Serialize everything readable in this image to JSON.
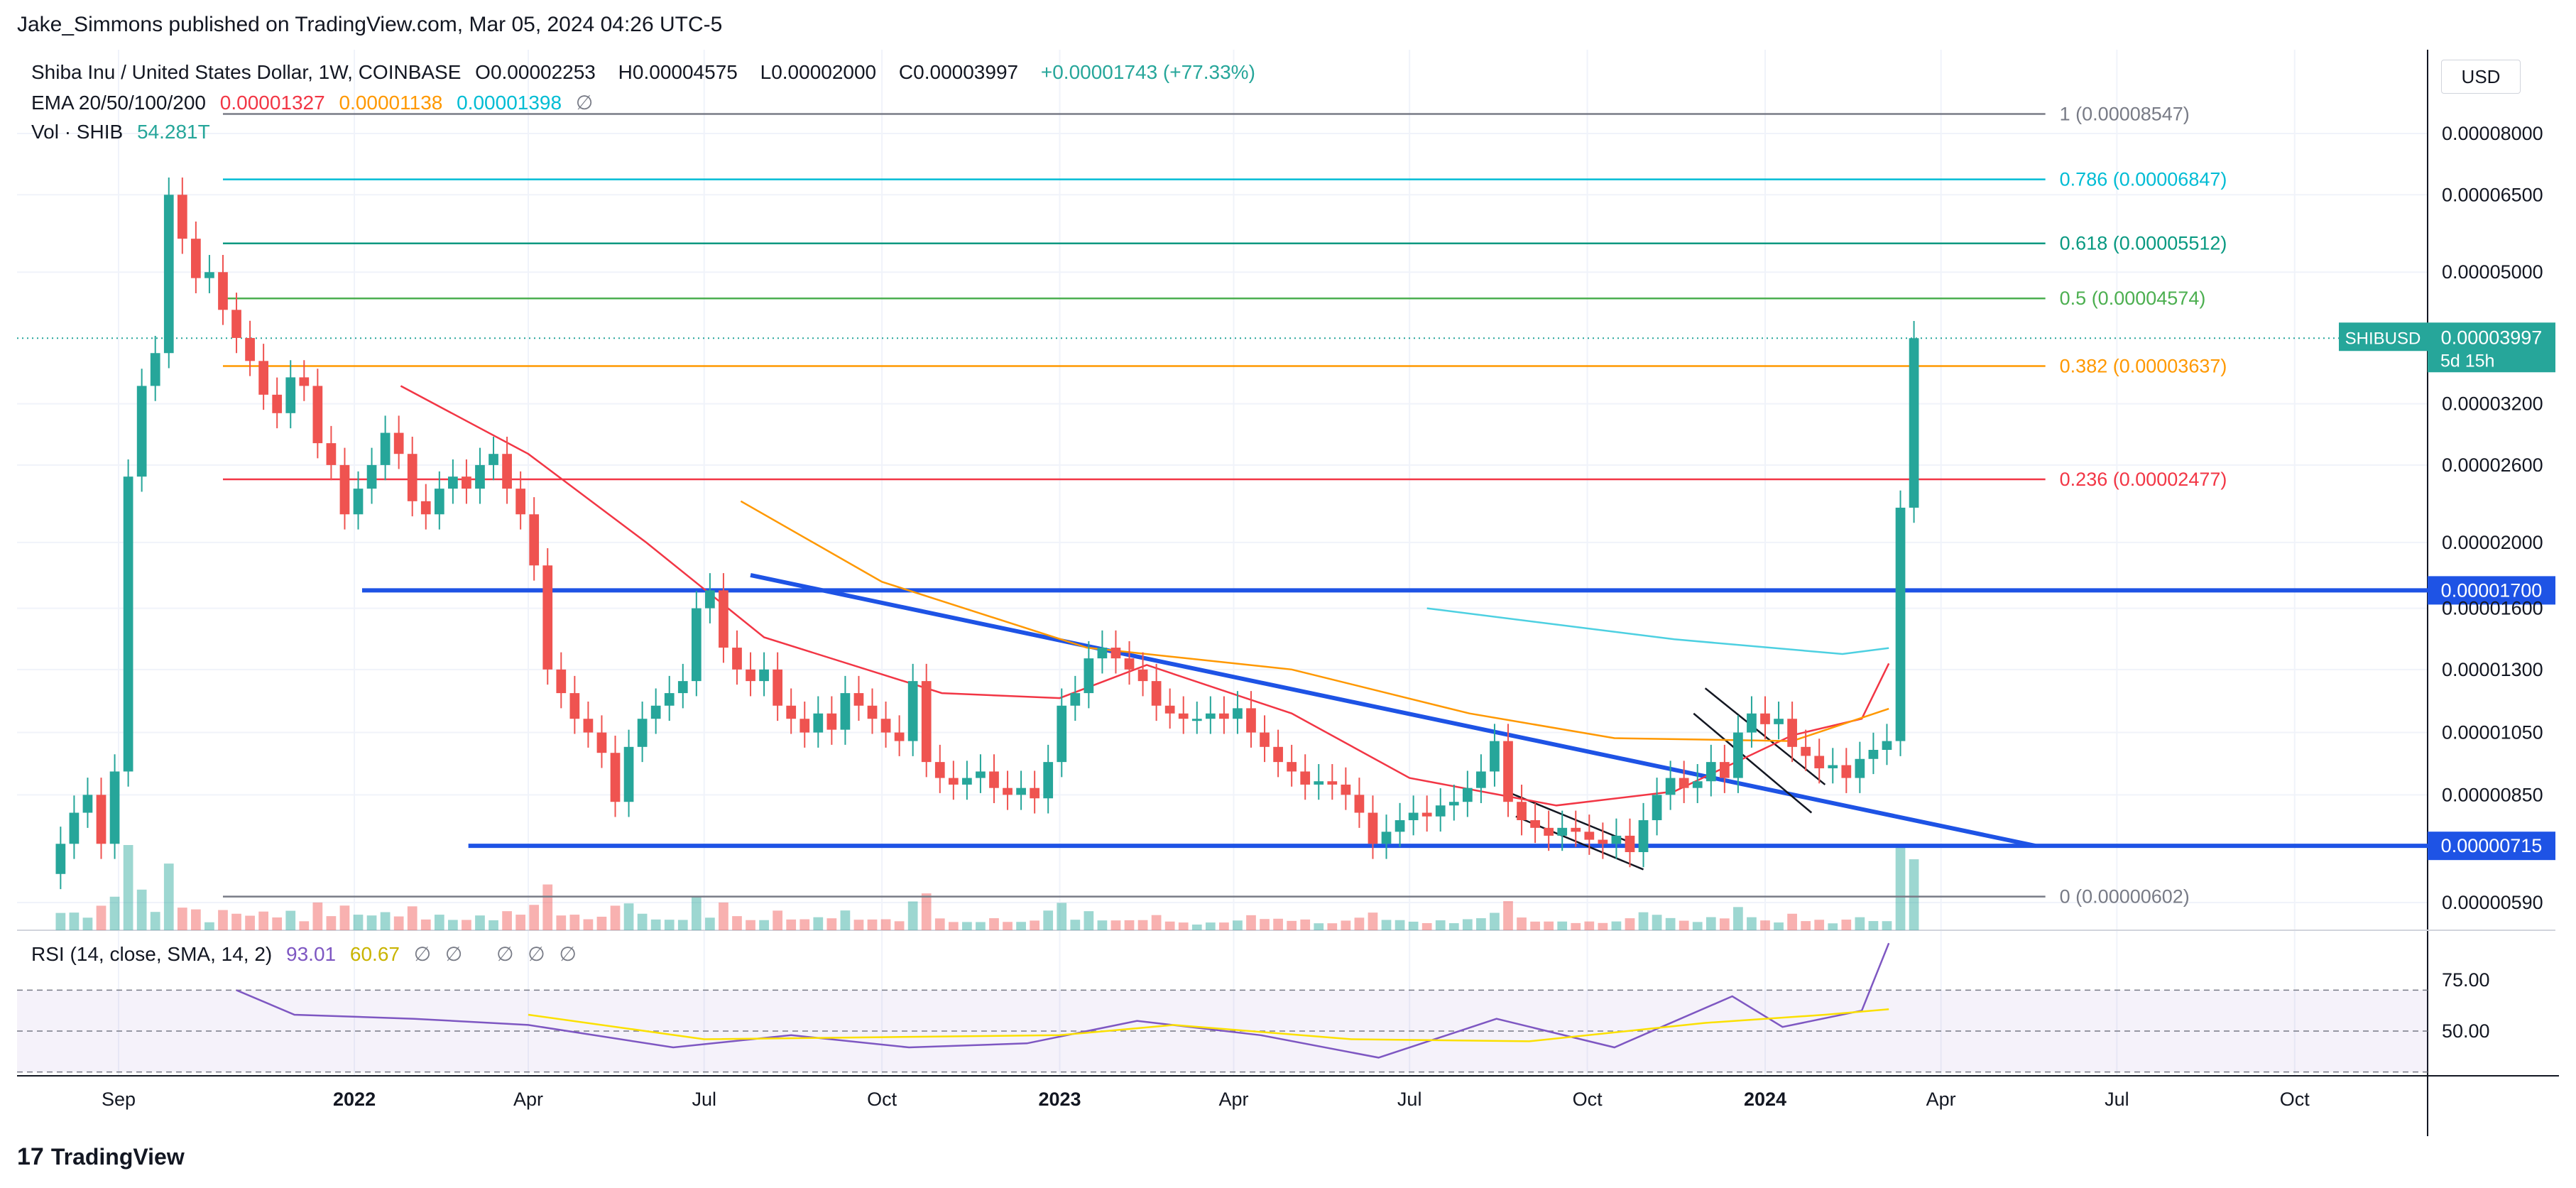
{
  "header": {
    "publisher_line": "Jake_Simmons published on TradingView.com, Mar 05, 2024 04:26 UTC-5"
  },
  "legend": {
    "symbol": "Shiba Inu / United States Dollar, 1W, COINBASE",
    "o_label": "O",
    "o_value": "0.00002253",
    "h_label": "H",
    "h_value": "0.00004575",
    "l_label": "L",
    "l_value": "0.00002000",
    "c_label": "C",
    "c_value": "0.00003997",
    "change": "+0.00001743 (+77.33%)",
    "ema_label": "EMA 20/50/100/200",
    "ema_values": [
      "0.00001327",
      "0.00001138",
      "0.00001398"
    ],
    "ema_na": "∅",
    "vol_label": "Vol · SHIB",
    "vol_value": "54.281T",
    "rsi_label": "RSI (14, close, SMA, 14, 2)",
    "rsi_value": "93.01",
    "rsi_sma_value": "60.67",
    "rsi_na": [
      "∅",
      "∅",
      "∅",
      "∅",
      "∅"
    ]
  },
  "currency": "USD",
  "last_price_tag": {
    "symbol": "SHIBUSD",
    "price": "0.00003997",
    "countdown": "5d 15h"
  },
  "line_tags": [
    "0.00001700",
    "0.00000715"
  ],
  "footer": {
    "brand": "TradingView",
    "logo_mark": "17"
  },
  "colors": {
    "up": "#26a69a",
    "down": "#ef5350",
    "trendline": "#1e53e5",
    "ema20": "#f23645",
    "ema50": "#ff9800",
    "ema100": "#4dd0e1",
    "rsi": "#7e57c2",
    "rsi_sma": "#fbe000"
  },
  "chart_data": {
    "type": "candlestick",
    "scale": "log",
    "price_axis_ticks": [
      "0.00008000",
      "0.00006500",
      "0.00005000",
      "0.00003200",
      "0.00002600",
      "0.00002000",
      "0.00001600",
      "0.00001300",
      "0.00001050",
      "0.00000850",
      "0.00000590"
    ],
    "price_axis_values": [
      8e-05,
      6.5e-05,
      5e-05,
      3.2e-05,
      2.6e-05,
      2e-05,
      1.6e-05,
      1.3e-05,
      1.05e-05,
      8.5e-06,
      5.9e-06
    ],
    "time_axis_labels": [
      "Sep",
      "2022",
      "Apr",
      "Jul",
      "Oct",
      "2023",
      "Apr",
      "Jul",
      "Oct",
      "2024",
      "Apr",
      "Jul",
      "Oct"
    ],
    "time_axis_dates": [
      "2021-09-01",
      "2022-01-01",
      "2022-04-01",
      "2022-07-01",
      "2022-10-01",
      "2023-01-01",
      "2023-04-01",
      "2023-07-01",
      "2023-10-01",
      "2024-01-01",
      "2024-04-01",
      "2024-07-01",
      "2024-10-01"
    ],
    "fibonacci": [
      {
        "label": "1 (0.00008547)",
        "value": 8.547e-05,
        "color": "#787b86"
      },
      {
        "label": "0.786 (0.00006847)",
        "value": 6.847e-05,
        "color": "#00bcd4"
      },
      {
        "label": "0.618 (0.00005512)",
        "value": 5.512e-05,
        "color": "#089981"
      },
      {
        "label": "0.5 (0.00004574)",
        "value": 4.574e-05,
        "color": "#4caf50"
      },
      {
        "label": "0.382 (0.00003637)",
        "value": 3.637e-05,
        "color": "#ff9800"
      },
      {
        "label": "0.236 (0.00002477)",
        "value": 2.477e-05,
        "color": "#f23645"
      },
      {
        "label": "0 (0.00000602)",
        "value": 6.02e-06,
        "color": "#787b86"
      }
    ],
    "horizontal_levels": [
      1.7e-05,
      7.15e-06
    ],
    "trendline": {
      "from": [
        "2022-07-25",
        1.79e-05
      ],
      "to": [
        "2024-05-20",
        7.15e-06
      ]
    },
    "closes": [
      7.2e-06,
      8e-06,
      8.5e-06,
      7.2e-06,
      9.2e-06,
      2.5e-05,
      3.4e-05,
      3.8e-05,
      6.5e-05,
      5.6e-05,
      4.9e-05,
      5e-05,
      4.4e-05,
      4e-05,
      3.7e-05,
      3.3e-05,
      3.1e-05,
      3.5e-05,
      3.4e-05,
      2.8e-05,
      2.6e-05,
      2.2e-05,
      2.4e-05,
      2.6e-05,
      2.9e-05,
      2.7e-05,
      2.3e-05,
      2.2e-05,
      2.4e-05,
      2.5e-05,
      2.4e-05,
      2.6e-05,
      2.7e-05,
      2.4e-05,
      2.2e-05,
      1.85e-05,
      1.3e-05,
      1.2e-05,
      1.1e-05,
      1.05e-05,
      9.8e-06,
      8.3e-06,
      1e-05,
      1.1e-05,
      1.15e-05,
      1.2e-05,
      1.25e-05,
      1.6e-05,
      1.7e-05,
      1.4e-05,
      1.3e-05,
      1.25e-05,
      1.3e-05,
      1.15e-05,
      1.1e-05,
      1.05e-05,
      1.12e-05,
      1.06e-05,
      1.2e-05,
      1.15e-05,
      1.1e-05,
      1.05e-05,
      1.02e-05,
      1.25e-05,
      9.5e-06,
      9e-06,
      8.8e-06,
      9e-06,
      9.2e-06,
      8.7e-06,
      8.5e-06,
      8.7e-06,
      8.4e-06,
      9.5e-06,
      1.15e-05,
      1.2e-05,
      1.35e-05,
      1.4e-05,
      1.35e-05,
      1.3e-05,
      1.25e-05,
      1.15e-05,
      1.12e-05,
      1.1e-05,
      1.1e-05,
      1.12e-05,
      1.1e-05,
      1.14e-05,
      1.05e-05,
      1e-05,
      9.5e-06,
      9.2e-06,
      8.8e-06,
      8.9e-06,
      8.8e-06,
      8.5e-06,
      8e-06,
      7.2e-06,
      7.5e-06,
      7.8e-06,
      8e-06,
      7.9e-06,
      8.2e-06,
      8.3e-06,
      8.7e-06,
      9.2e-06,
      1.02e-05,
      8.3e-06,
      7.8e-06,
      7.6e-06,
      7.4e-06,
      7.6e-06,
      7.5e-06,
      7.3e-06,
      7.2e-06,
      7.4e-06,
      7e-06,
      7.8e-06,
      8.5e-06,
      9e-06,
      8.7e-06,
      8.9e-06,
      9.5e-06,
      9e-06,
      1.05e-05,
      1.12e-05,
      1.08e-05,
      1.1e-05,
      1e-05,
      9.7e-06,
      9.3e-06,
      9.4e-06,
      9e-06,
      9.6e-06,
      9.9e-06,
      1.02e-05,
      2.25e-05,
      3.997e-05
    ],
    "ema20": [
      [
        2022,
        1,
        25,
        3.4e-05
      ],
      [
        2022,
        4,
        1,
        2.7e-05
      ],
      [
        2022,
        6,
        1,
        2e-05
      ],
      [
        2022,
        8,
        1,
        1.45e-05
      ],
      [
        2022,
        11,
        1,
        1.2e-05
      ],
      [
        2023,
        1,
        1,
        1.18e-05
      ],
      [
        2023,
        2,
        15,
        1.32e-05
      ],
      [
        2023,
        5,
        1,
        1.12e-05
      ],
      [
        2023,
        7,
        1,
        9e-06
      ],
      [
        2023,
        9,
        15,
        8.2e-06
      ],
      [
        2023,
        11,
        15,
        8.6e-06
      ],
      [
        2024,
        1,
        15,
        1.04e-05
      ],
      [
        2024,
        2,
        20,
        1.1e-05
      ],
      [
        2024,
        3,
        5,
        1.327e-05
      ]
    ],
    "ema50": [
      [
        2022,
        7,
        20,
        2.3e-05
      ],
      [
        2022,
        10,
        1,
        1.75e-05
      ],
      [
        2023,
        1,
        15,
        1.4e-05
      ],
      [
        2023,
        5,
        1,
        1.3e-05
      ],
      [
        2023,
        8,
        1,
        1.12e-05
      ],
      [
        2023,
        10,
        15,
        1.03e-05
      ],
      [
        2024,
        1,
        15,
        1.02e-05
      ],
      [
        2024,
        3,
        5,
        1.138e-05
      ]
    ],
    "ema100": [
      [
        2023,
        7,
        10,
        1.6e-05
      ],
      [
        2023,
        11,
        15,
        1.44e-05
      ],
      [
        2024,
        2,
        10,
        1.37e-05
      ],
      [
        2024,
        3,
        5,
        1.398e-05
      ]
    ],
    "rsi_axis_ticks": [
      "75.00",
      "50.00"
    ],
    "rsi_axis_values": [
      75,
      50
    ],
    "rsi": [
      [
        2021,
        11,
        1,
        70
      ],
      [
        2021,
        12,
        1,
        58
      ],
      [
        2022,
        2,
        1,
        56
      ],
      [
        2022,
        4,
        1,
        53
      ],
      [
        2022,
        6,
        15,
        42
      ],
      [
        2022,
        8,
        15,
        48
      ],
      [
        2022,
        10,
        15,
        42
      ],
      [
        2022,
        12,
        15,
        44
      ],
      [
        2023,
        2,
        10,
        55
      ],
      [
        2023,
        4,
        15,
        48
      ],
      [
        2023,
        6,
        15,
        37
      ],
      [
        2023,
        8,
        15,
        56
      ],
      [
        2023,
        10,
        15,
        42
      ],
      [
        2023,
        12,
        15,
        67
      ],
      [
        2024,
        1,
        10,
        52
      ],
      [
        2024,
        2,
        20,
        60
      ],
      [
        2024,
        3,
        5,
        93
      ]
    ],
    "rsi_sma": [
      [
        2022,
        4,
        1,
        58
      ],
      [
        2022,
        7,
        1,
        46
      ],
      [
        2022,
        10,
        1,
        47
      ],
      [
        2023,
        1,
        1,
        48
      ],
      [
        2023,
        3,
        1,
        53
      ],
      [
        2023,
        6,
        1,
        46
      ],
      [
        2023,
        9,
        1,
        45
      ],
      [
        2023,
        12,
        1,
        54
      ],
      [
        2024,
        2,
        1,
        58
      ],
      [
        2024,
        3,
        5,
        60.67
      ]
    ]
  }
}
